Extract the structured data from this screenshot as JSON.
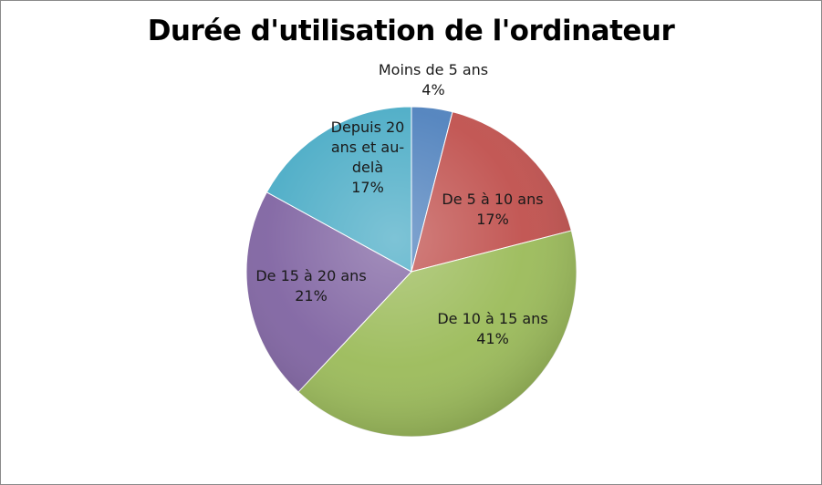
{
  "chart_data": {
    "type": "pie",
    "title": "Durée d'utilisation de l'ordinateur",
    "slices": [
      {
        "label": "Moins de 5 ans",
        "lines": [
          "Moins de 5 ans"
        ],
        "value": 4,
        "display": "4%",
        "color": "#4F81BD"
      },
      {
        "label": "De 5 à 10 ans",
        "lines": [
          "De 5 à 10 ans"
        ],
        "value": 17,
        "display": "17%",
        "color": "#C0504D"
      },
      {
        "label": "De 10 à 15 ans",
        "lines": [
          "De 10 à 15 ans"
        ],
        "value": 41,
        "display": "41%",
        "color": "#9BBB59"
      },
      {
        "label": "De 15 à 20 ans",
        "lines": [
          "De 15 à 20 ans"
        ],
        "value": 21,
        "display": "21%",
        "color": "#8064A2"
      },
      {
        "label": "Depuis 20 ans et au-delà",
        "lines": [
          "Depuis 20",
          "ans et au-",
          "delà"
        ],
        "value": 17,
        "display": "17%",
        "color": "#4BACC6"
      }
    ],
    "legend": "none"
  }
}
